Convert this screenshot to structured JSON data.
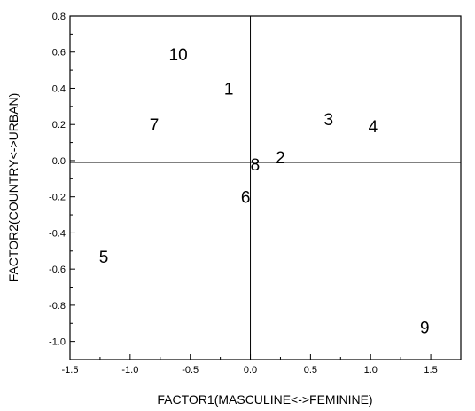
{
  "chart_data": {
    "type": "scatter",
    "xlabel": "FACTOR1(MASCULINE<->FEMININE)",
    "ylabel": "FACTOR2(COUNTRY<->URBAN)",
    "xlim": [
      -1.5,
      1.75
    ],
    "ylim": [
      -1.1,
      0.8
    ],
    "x_ticks": [
      "-1.5",
      "-1.0",
      "-0.5",
      "0.0",
      "0.5",
      "1.0",
      "1.5"
    ],
    "y_ticks": [
      "0.8",
      "0.6",
      "0.4",
      "0.2",
      "0.0",
      "-0.2",
      "-0.4",
      "-0.6",
      "-0.8",
      "-1.0"
    ],
    "reference_lines": {
      "x": 0.0,
      "y": -0.01
    },
    "points": [
      {
        "label": "1",
        "x": -0.18,
        "y": 0.4
      },
      {
        "label": "2",
        "x": 0.25,
        "y": 0.02
      },
      {
        "label": "3",
        "x": 0.65,
        "y": 0.23
      },
      {
        "label": "4",
        "x": 1.02,
        "y": 0.19
      },
      {
        "label": "5",
        "x": -1.22,
        "y": -0.53
      },
      {
        "label": "6",
        "x": -0.04,
        "y": -0.2
      },
      {
        "label": "7",
        "x": -0.8,
        "y": 0.2
      },
      {
        "label": "8",
        "x": 0.04,
        "y": -0.02
      },
      {
        "label": "9",
        "x": 1.45,
        "y": -0.92
      },
      {
        "label": "10",
        "x": -0.6,
        "y": 0.59
      }
    ]
  }
}
